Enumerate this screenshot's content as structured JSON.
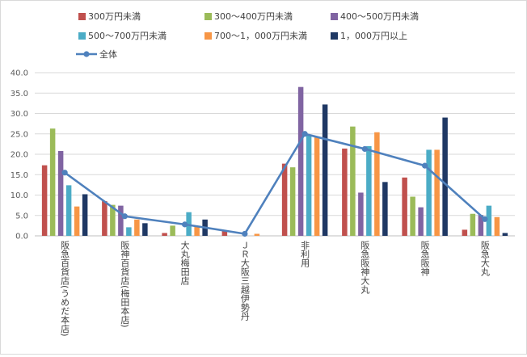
{
  "chart_data": {
    "type": "bar",
    "title": "",
    "xlabel": "",
    "ylabel": "",
    "ylim": [
      0,
      40
    ],
    "yticks": [
      "0.0",
      "5.0",
      "10.0",
      "15.0",
      "20.0",
      "25.0",
      "30.0",
      "35.0",
      "40.0"
    ],
    "grid": true,
    "legend_position": "top",
    "categories": [
      "阪急百貨店(うめだ本店)",
      "阪神百貨店(梅田本店)",
      "大丸梅田店",
      "ＪＲ大阪三越伊勢丹",
      "非利用",
      "阪急阪神大丸",
      "阪急阪神",
      "阪急大丸"
    ],
    "series": [
      {
        "name": "300万円未満",
        "color": "#c0504d",
        "values": [
          17.3,
          8.5,
          0.7,
          1.2,
          17.7,
          21.4,
          14.3,
          1.5
        ]
      },
      {
        "name": "300～400万円未満",
        "color": "#9bbb59",
        "values": [
          26.3,
          7.6,
          2.5,
          0.0,
          16.8,
          26.8,
          9.6,
          5.4
        ]
      },
      {
        "name": "400～500万円未満",
        "color": "#8064a2",
        "values": [
          20.8,
          7.4,
          0.0,
          0.0,
          36.5,
          10.6,
          7.0,
          5.1
        ]
      },
      {
        "name": "500～700万円未満",
        "color": "#4bacc6",
        "values": [
          12.4,
          2.1,
          5.8,
          0.0,
          24.8,
          22.0,
          21.1,
          7.4
        ]
      },
      {
        "name": "700～1，000万円未満",
        "color": "#f79646",
        "values": [
          7.2,
          4.0,
          2.2,
          0.5,
          24.3,
          25.4,
          21.1,
          4.6
        ]
      },
      {
        "name": "1，000万円以上",
        "color": "#1f3864",
        "values": [
          10.2,
          3.1,
          4.0,
          0.0,
          32.2,
          13.2,
          29.0,
          0.7
        ]
      }
    ],
    "line_series": {
      "name": "全体",
      "color": "#4f81bd",
      "values": [
        15.5,
        4.8,
        2.8,
        0.5,
        25.0,
        21.3,
        17.2,
        4.1
      ]
    }
  }
}
